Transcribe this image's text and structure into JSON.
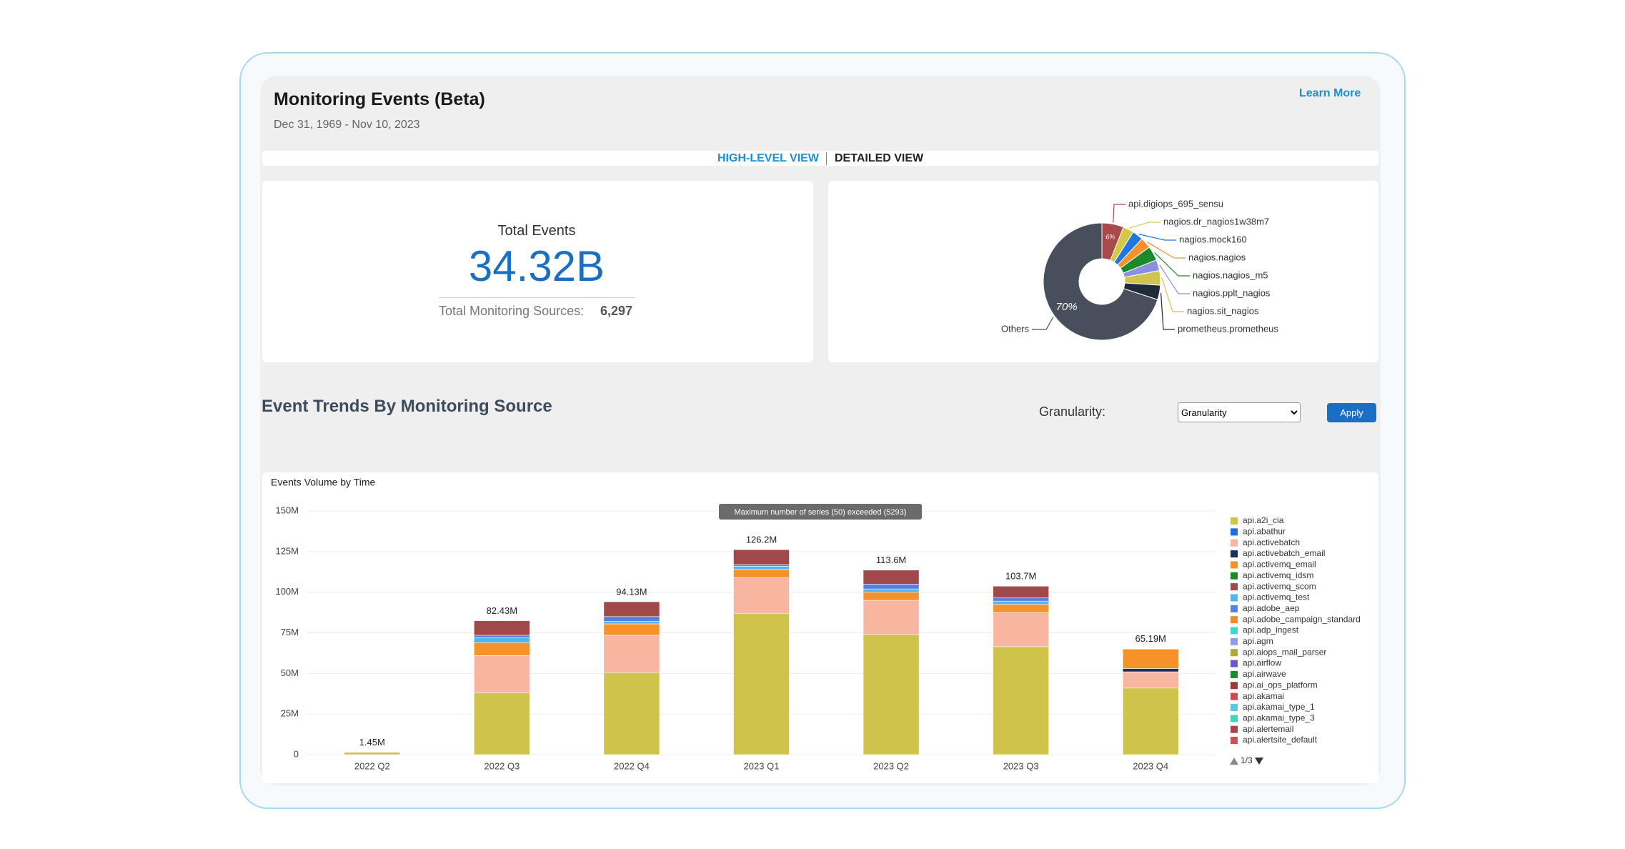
{
  "header": {
    "title": "Monitoring Events (Beta)",
    "date_range": "Dec 31, 1969 - Nov 10, 2023",
    "link": "Learn More"
  },
  "tabs": [
    "HIGH-LEVEL VIEW",
    "DETAILED VIEW"
  ],
  "summary": {
    "label": "Total Events",
    "value": "34.32B",
    "sources_label": "Total Monitoring Sources:",
    "sources_value": "6,297"
  },
  "trends": {
    "title": "Event Trends By Monitoring Source",
    "granularity_label": "Granularity:",
    "granularity_select": "Granularity",
    "apply": "Apply"
  },
  "chart_data": [
    {
      "type": "donut",
      "categories": [
        "api.digiops_695_sensu",
        "nagios.dr_nagios1w38m7",
        "nagios.mock160",
        "nagios.nagios",
        "nagios.nagios_m5",
        "nagios.pplt_nagios",
        "nagios.sit_nagios",
        "prometheus.prometheus",
        "Others"
      ],
      "values": [
        6,
        3,
        3,
        3,
        4,
        3,
        4,
        4,
        70
      ],
      "value_labels": [
        "6%",
        null,
        null,
        null,
        null,
        null,
        null,
        null,
        "70%"
      ],
      "colors": [
        "#a8494a",
        "#d4c84a",
        "#1f77e0",
        "#f5922a",
        "#1a8a2a",
        "#8a8fe0",
        "#d0c450",
        "#1f2a3a",
        "#474e5c"
      ]
    },
    {
      "type": "bar",
      "stacked": true,
      "title": "Events Volume by Time",
      "notice": "Maximum number of series (50) exceeded (5293)",
      "categories": [
        "2022 Q2",
        "2022 Q3",
        "2022 Q4",
        "2023 Q1",
        "2023 Q2",
        "2023 Q3",
        "2023 Q4"
      ],
      "series": [
        {
          "name": "api.a2i_cia",
          "color": "#cfc34b",
          "values": [
            1450000,
            38000000,
            50500000,
            87000000,
            74000000,
            66500000,
            41000000
          ]
        },
        {
          "name": "api.abathur",
          "color": "#1f6fe0",
          "values": [
            0,
            0,
            0,
            0,
            0,
            0,
            0
          ]
        },
        {
          "name": "api.activebatch",
          "color": "#f8b5a0",
          "values": [
            0,
            23000000,
            23000000,
            22000000,
            21000000,
            21000000,
            10000000
          ]
        },
        {
          "name": "api.activebatch_email",
          "color": "#1a2f5a",
          "values": [
            0,
            0,
            0,
            0,
            0,
            0,
            2000000
          ]
        },
        {
          "name": "api.activemq_email",
          "color": "#f5922a",
          "values": [
            0,
            8000000,
            7000000,
            5000000,
            5000000,
            5000000,
            12000000
          ]
        },
        {
          "name": "api.activemq_idsm",
          "color": "#1a8a2a",
          "values": [
            0,
            0,
            0,
            0,
            0,
            0,
            0
          ]
        },
        {
          "name": "api.activemq_scom",
          "color": "#a04a48",
          "values": [
            0,
            0,
            0,
            0,
            0,
            0,
            0
          ]
        },
        {
          "name": "api.activemq_test",
          "color": "#4fb6f0",
          "values": [
            0,
            3000000,
            1500000,
            2000000,
            2000000,
            2000000,
            190000
          ]
        },
        {
          "name": "api.adobe_aep",
          "color": "#5a7de0",
          "values": [
            0,
            1500000,
            3000000,
            1000000,
            3000000,
            2000000,
            0
          ]
        },
        {
          "name": "api.adobe_campaign_standard",
          "color": "#f08a30",
          "values": [
            0,
            0,
            0,
            0,
            0,
            0,
            0
          ]
        },
        {
          "name": "api.adp_ingest",
          "color": "#3fd8c8",
          "values": [
            0,
            0,
            0,
            0,
            0,
            0,
            0
          ]
        },
        {
          "name": "api.agm",
          "color": "#8a9ef0",
          "values": [
            0,
            0,
            0,
            0,
            0,
            0,
            0
          ]
        },
        {
          "name": "api.aiops_mail_parser",
          "color": "#b0a83a",
          "values": [
            0,
            0,
            0,
            0,
            0,
            0,
            0
          ]
        },
        {
          "name": "api.airflow",
          "color": "#6a5acd",
          "values": [
            0,
            0,
            0,
            0,
            0,
            0,
            0
          ]
        },
        {
          "name": "api.airwave",
          "color": "#1a8a2a",
          "values": [
            0,
            0,
            0,
            0,
            0,
            0,
            0
          ]
        },
        {
          "name": "api.ai_ops_platform",
          "color": "#9a3a3a",
          "values": [
            0,
            0,
            0,
            0,
            0,
            0,
            0
          ]
        },
        {
          "name": "api.akamai",
          "color": "#d04a4a",
          "values": [
            0,
            0,
            0,
            0,
            0,
            0,
            0
          ]
        },
        {
          "name": "api.akamai_type_1",
          "color": "#5ac8e8",
          "values": [
            0,
            0,
            0,
            0,
            0,
            0,
            0
          ]
        },
        {
          "name": "api.akamai_type_3",
          "color": "#3ad8c0",
          "values": [
            0,
            0,
            0,
            0,
            0,
            0,
            0
          ]
        },
        {
          "name": "api.alertemail",
          "color": "#a0484a",
          "values": [
            0,
            8930000,
            9130000,
            9200000,
            8600000,
            7200000,
            0
          ]
        },
        {
          "name": "api.alertsite_default",
          "color": "#d05050",
          "values": [
            0,
            0,
            0,
            0,
            0,
            0,
            0
          ]
        }
      ],
      "totals": [
        1450000,
        82430000,
        94130000,
        126200000,
        113600000,
        103700000,
        65190000
      ],
      "total_labels": [
        "1.45M",
        "82.43M",
        "94.13M",
        "126.2M",
        "113.6M",
        "103.7M",
        "65.19M"
      ],
      "ylim": [
        0,
        150000000
      ],
      "yticks": [
        0,
        {
          "value": 25000000,
          "label": "25M"
        },
        {
          "value": 50000000,
          "label": "50M"
        },
        {
          "value": 75000000,
          "label": "75M"
        },
        {
          "value": 100000000,
          "label": "100M"
        },
        {
          "value": 125000000,
          "label": "125M"
        },
        {
          "value": 150000000,
          "label": "150M"
        }
      ],
      "grid": true,
      "legend": "right",
      "legend_page": "1/3"
    }
  ]
}
